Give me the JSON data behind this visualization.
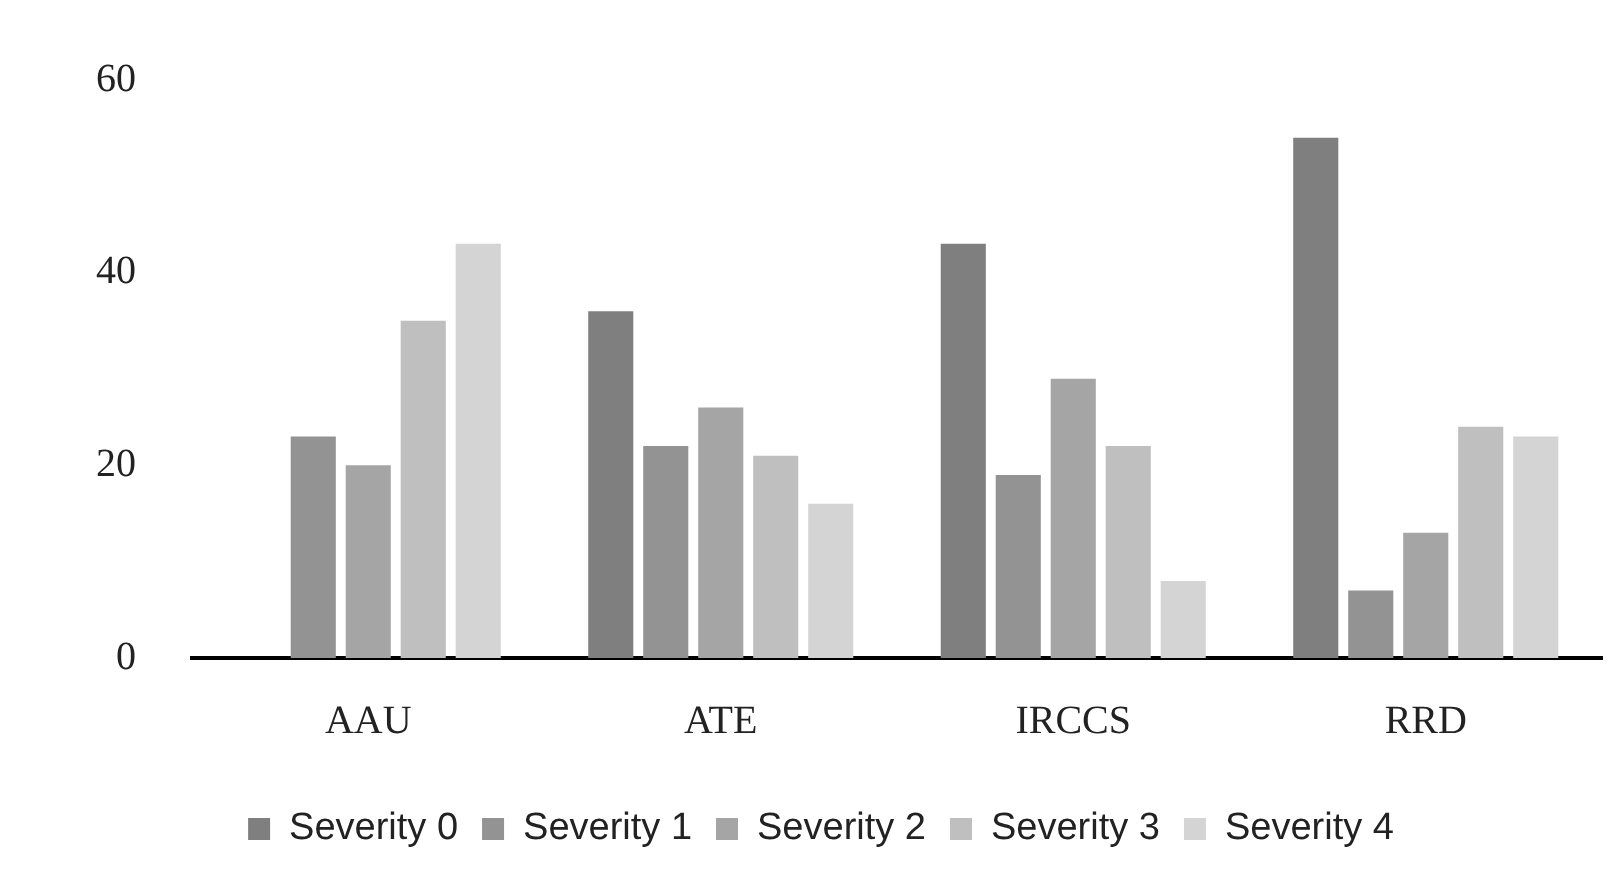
{
  "chart_data": {
    "type": "bar",
    "categories": [
      "AAU",
      "ATE",
      "IRCCS",
      "RRD"
    ],
    "series": [
      {
        "name": "Severity 0",
        "color": "#7f7f7f",
        "values": [
          0,
          36,
          43,
          54
        ]
      },
      {
        "name": "Severity 1",
        "color": "#939393",
        "values": [
          23,
          22,
          19,
          7
        ]
      },
      {
        "name": "Severity 2",
        "color": "#a5a5a5",
        "values": [
          20,
          26,
          29,
          13
        ]
      },
      {
        "name": "Severity 3",
        "color": "#bfbfbf",
        "values": [
          35,
          21,
          22,
          24
        ]
      },
      {
        "name": "Severity 4",
        "color": "#d4d4d4",
        "values": [
          43,
          16,
          8,
          23
        ]
      }
    ],
    "ylim": [
      0,
      60
    ],
    "yticks": [
      0,
      20,
      40,
      60
    ],
    "grid": false,
    "legend": "bottom"
  }
}
